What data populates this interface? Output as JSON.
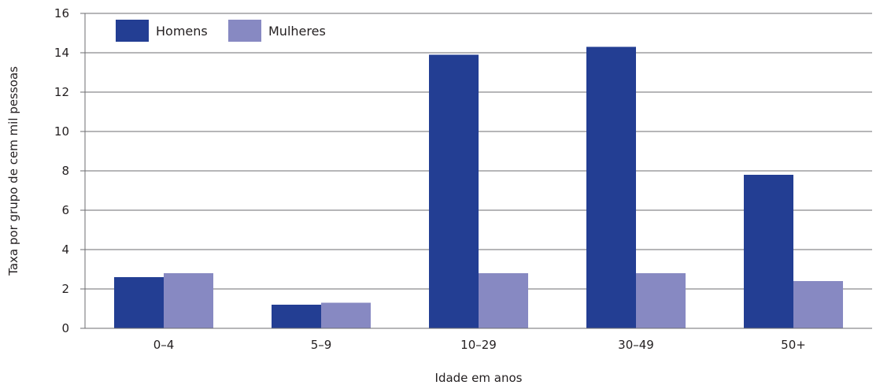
{
  "chart_data": {
    "type": "bar",
    "title": "",
    "xlabel": "Idade em anos",
    "ylabel": "Taxa por grupo de cem mil pessoas",
    "categories": [
      "0–4",
      "5–9",
      "10–29",
      "30–49",
      "50+"
    ],
    "series": [
      {
        "name": "Homens",
        "color": "#233e93",
        "values": [
          2.6,
          1.2,
          13.9,
          14.3,
          7.8
        ]
      },
      {
        "name": "Mulheres",
        "color": "#8789c2",
        "values": [
          2.8,
          1.3,
          2.8,
          2.8,
          2.4
        ]
      }
    ],
    "ylim": [
      0,
      16
    ],
    "yticks": [
      0,
      2,
      4,
      6,
      8,
      10,
      12,
      14,
      16
    ],
    "grid": true,
    "legend_position": "top-left"
  }
}
